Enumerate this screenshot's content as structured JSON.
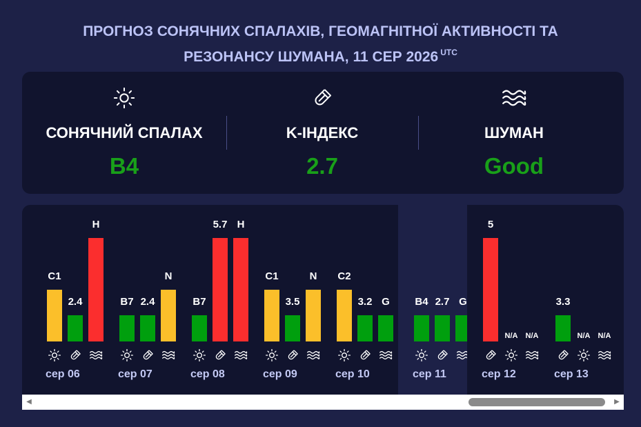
{
  "header": {
    "title_line1": "ПРОГНОЗ СОНЯЧНИХ СПАЛАХІВ, ГЕОМАГНІТНОЇ АКТИВНОСТІ ТА",
    "title_line2": "РЕЗОНАНСУ ШУМАНА, 11 СЕР 2026",
    "title_sup": "UTC"
  },
  "summary": [
    {
      "label": "СОНЯЧНИЙ СПАЛАХ",
      "value": "B4",
      "icon": "sun-icon"
    },
    {
      "label": "K-ІНДЕКС",
      "value": "2.7",
      "icon": "magnet-icon"
    },
    {
      "label": "ШУМАН",
      "value": "Good",
      "icon": "waves-icon"
    }
  ],
  "colors": {
    "background": "#1d2147",
    "panel": "#11142e",
    "title": "#bcc3f6",
    "green": "#009f0e",
    "yellow": "#fbbf2a",
    "red": "#fb2e2e",
    "good_text": "#19a019"
  },
  "timeline": {
    "days": [
      {
        "label": "",
        "bars": [
          {
            "type": "waves",
            "text": "H",
            "level": 1.0,
            "color": "red"
          }
        ]
      },
      {
        "label": "сер 06",
        "bars": [
          {
            "type": "sun",
            "text": "C1",
            "level": 0.5,
            "color": "yellow"
          },
          {
            "type": "magnet",
            "text": "2.4",
            "level": 0.25,
            "color": "green"
          },
          {
            "type": "waves",
            "text": "H",
            "level": 1.0,
            "color": "red"
          }
        ]
      },
      {
        "label": "сер 07",
        "bars": [
          {
            "type": "sun",
            "text": "B7",
            "level": 0.25,
            "color": "green"
          },
          {
            "type": "magnet",
            "text": "2.4",
            "level": 0.25,
            "color": "green"
          },
          {
            "type": "waves",
            "text": "N",
            "level": 0.5,
            "color": "yellow"
          }
        ]
      },
      {
        "label": "сер 08",
        "bars": [
          {
            "type": "sun",
            "text": "B7",
            "level": 0.25,
            "color": "green"
          },
          {
            "type": "magnet",
            "text": "5.7",
            "level": 1.0,
            "color": "red"
          },
          {
            "type": "waves",
            "text": "H",
            "level": 1.0,
            "color": "red"
          }
        ]
      },
      {
        "label": "сер 09",
        "bars": [
          {
            "type": "sun",
            "text": "C1",
            "level": 0.5,
            "color": "yellow"
          },
          {
            "type": "magnet",
            "text": "3.5",
            "level": 0.25,
            "color": "green"
          },
          {
            "type": "waves",
            "text": "N",
            "level": 0.5,
            "color": "yellow"
          }
        ]
      },
      {
        "label": "сер 10",
        "bars": [
          {
            "type": "sun",
            "text": "C2",
            "level": 0.5,
            "color": "yellow"
          },
          {
            "type": "magnet",
            "text": "3.2",
            "level": 0.25,
            "color": "green"
          },
          {
            "type": "waves",
            "text": "G",
            "level": 0.25,
            "color": "green"
          }
        ]
      },
      {
        "label": "сер 11",
        "today": true,
        "bars": [
          {
            "type": "sun",
            "text": "B4",
            "level": 0.25,
            "color": "green"
          },
          {
            "type": "magnet",
            "text": "2.7",
            "level": 0.25,
            "color": "green"
          },
          {
            "type": "waves",
            "text": "G",
            "level": 0.25,
            "color": "green"
          }
        ]
      },
      {
        "label": "сер 12",
        "bars": [
          {
            "type": "magnet",
            "text": "5",
            "level": 1.0,
            "color": "red"
          },
          {
            "type": "sun",
            "text": "N/A",
            "level": 0,
            "color": "none"
          },
          {
            "type": "waves",
            "text": "N/A",
            "level": 0,
            "color": "none"
          }
        ]
      },
      {
        "label": "сер 13",
        "bars": [
          {
            "type": "magnet",
            "text": "3.3",
            "level": 0.25,
            "color": "green"
          },
          {
            "type": "sun",
            "text": "N/A",
            "level": 0,
            "color": "none"
          },
          {
            "type": "waves",
            "text": "N/A",
            "level": 0,
            "color": "none"
          }
        ]
      }
    ]
  },
  "scrollbar": {
    "left_arrow": "◀",
    "right_arrow": "▶"
  }
}
